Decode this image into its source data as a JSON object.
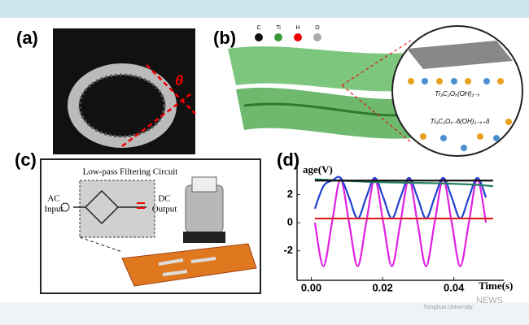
{
  "panels": {
    "a": {
      "label": "(a)",
      "angle": "θ"
    },
    "b": {
      "label": "(b)",
      "atoms": [
        "C",
        "Ti",
        "H",
        "O"
      ],
      "formula_top": "Ti₃C₂Oₓ(OH)₂₋ₓ",
      "formula_bottom": "Ti₃C₂Oₓ₋δ(OH)₂₋ₓ₊δ"
    },
    "c": {
      "label": "(c)",
      "title": "Low-pass Filtering Circuit",
      "input": [
        "AC",
        "Input"
      ],
      "output": [
        "DC",
        "Output"
      ]
    },
    "d": {
      "label": "(d)",
      "chart_data": {
        "type": "line",
        "ylabel": "age(V)",
        "xlabel": "Time(s)",
        "xlim": [
          -0.004,
          0.054
        ],
        "ylim": [
          -4.1,
          4.0
        ],
        "xticks": [
          {
            "value": 0,
            "label": "0.00"
          },
          {
            "value": 0.02,
            "label": "0.02"
          },
          {
            "value": 0.04,
            "label": "0.04"
          }
        ],
        "yticks": [
          -2,
          0,
          2
        ],
        "series": [
          {
            "color": "#e020e0",
            "x": [
              0.001,
              0.0034,
              0.0058,
              0.0082,
              0.0106,
              0.013,
              0.0154,
              0.0178,
              0.0202,
              0.0226,
              0.025,
              0.0274,
              0.0298,
              0.0322,
              0.0346,
              0.037,
              0.0394,
              0.0418,
              0.0442,
              0.0466,
              0.049
            ],
            "values": [
              0,
              -3.1,
              0,
              3.1,
              0,
              -3.1,
              0,
              3.1,
              0,
              -3.1,
              0,
              3.1,
              0,
              -3.1,
              0,
              3.1,
              0,
              -3.1,
              0,
              3.1,
              0
            ]
          },
          {
            "color": "#2040d0",
            "x": [
              0.001,
              0.0034,
              0.0058,
              0.0082,
              0.0106,
              0.013,
              0.0154,
              0.0178,
              0.0202,
              0.0226,
              0.025,
              0.0274,
              0.0298,
              0.0322,
              0.0346,
              0.037,
              0.0394,
              0.0418,
              0.0442,
              0.0466,
              0.049
            ],
            "values": [
              1.0,
              2.6,
              3.0,
              3.2,
              1.8,
              0.3,
              1.8,
              3.2,
              1.8,
              0.3,
              1.8,
              3.2,
              1.8,
              0.3,
              1.8,
              3.2,
              1.8,
              0.3,
              1.8,
              3.2,
              1.8
            ]
          },
          {
            "color": "#208060",
            "x": [
              0.001,
              0.0082,
              0.0178,
              0.0274,
              0.037,
              0.0466,
              0.051
            ],
            "values": [
              3.1,
              3.0,
              2.9,
              2.85,
              2.8,
              2.7,
              2.6
            ]
          },
          {
            "color": "#111111",
            "x": [
              0.001,
              0.051
            ],
            "values": [
              3.0,
              3.0
            ]
          },
          {
            "color": "#e02020",
            "x": [
              0.001,
              0.051
            ],
            "values": [
              0.3,
              0.3
            ]
          }
        ]
      }
    },
    "watermark": {
      "text": "Tsinghua University",
      "news": "NEWS"
    }
  }
}
